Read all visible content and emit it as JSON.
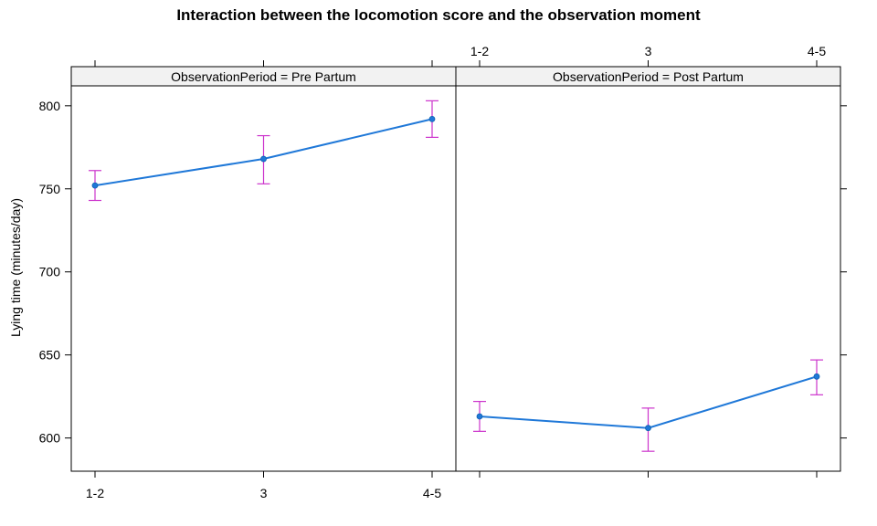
{
  "chart_data": {
    "type": "line",
    "title": "Interaction between the locomotion score and the observation moment",
    "xlabel": "",
    "ylabel": "Lying time (minutes/day)",
    "categories": [
      "1-2",
      "3",
      "4-5"
    ],
    "ylim": [
      580,
      812
    ],
    "yticks": [
      600,
      650,
      700,
      750,
      800
    ],
    "grid": false,
    "line_color": "#1f78d8",
    "errorbar_color": "#cc33cc",
    "panels": [
      {
        "strip": "ObservationPeriod = Pre Partum",
        "values": [
          752,
          768,
          792
        ],
        "lower": [
          743,
          753,
          781
        ],
        "upper": [
          761,
          782,
          803
        ]
      },
      {
        "strip": "ObservationPeriod = Post Partum",
        "values": [
          613,
          606,
          637
        ],
        "lower": [
          604,
          592,
          626
        ],
        "upper": [
          622,
          618,
          647
        ]
      }
    ]
  }
}
